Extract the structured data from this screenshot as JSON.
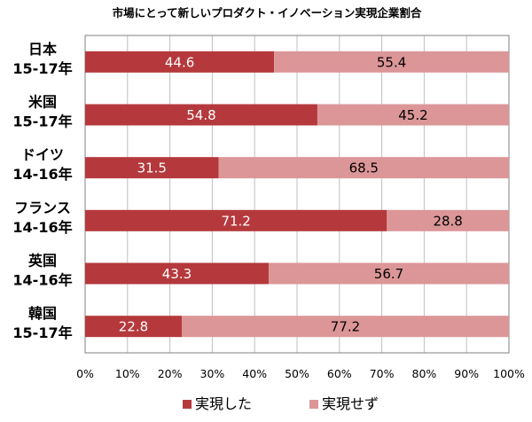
{
  "chart_data": {
    "type": "bar",
    "orientation": "horizontal",
    "stacked": true,
    "title": "市場にとって新しいプロダクト・イノベーション実現企業割合",
    "categories": [
      [
        "日本",
        "15-17年"
      ],
      [
        "米国",
        "15-17年"
      ],
      [
        "ドイツ",
        "14-16年"
      ],
      [
        "フランス",
        "14-16年"
      ],
      [
        "英国",
        "14-16年"
      ],
      [
        "韓国",
        "15-17年"
      ]
    ],
    "series": [
      {
        "name": "実現した",
        "values": [
          44.6,
          54.8,
          31.5,
          71.2,
          43.3,
          22.8
        ],
        "color": "#b5393c",
        "label_color": "#ffffff"
      },
      {
        "name": "実現せず",
        "values": [
          55.4,
          45.2,
          68.5,
          28.8,
          56.7,
          77.2
        ],
        "color": "#dc9698",
        "label_color": "#000000"
      }
    ],
    "xlim": [
      0,
      100
    ],
    "xticks": [
      "0%",
      "10%",
      "20%",
      "30%",
      "40%",
      "50%",
      "60%",
      "70%",
      "80%",
      "90%",
      "100%"
    ],
    "grid": true,
    "legend_position": "bottom",
    "gridline_color": "#bfbfbf",
    "border_color": "#808080"
  }
}
